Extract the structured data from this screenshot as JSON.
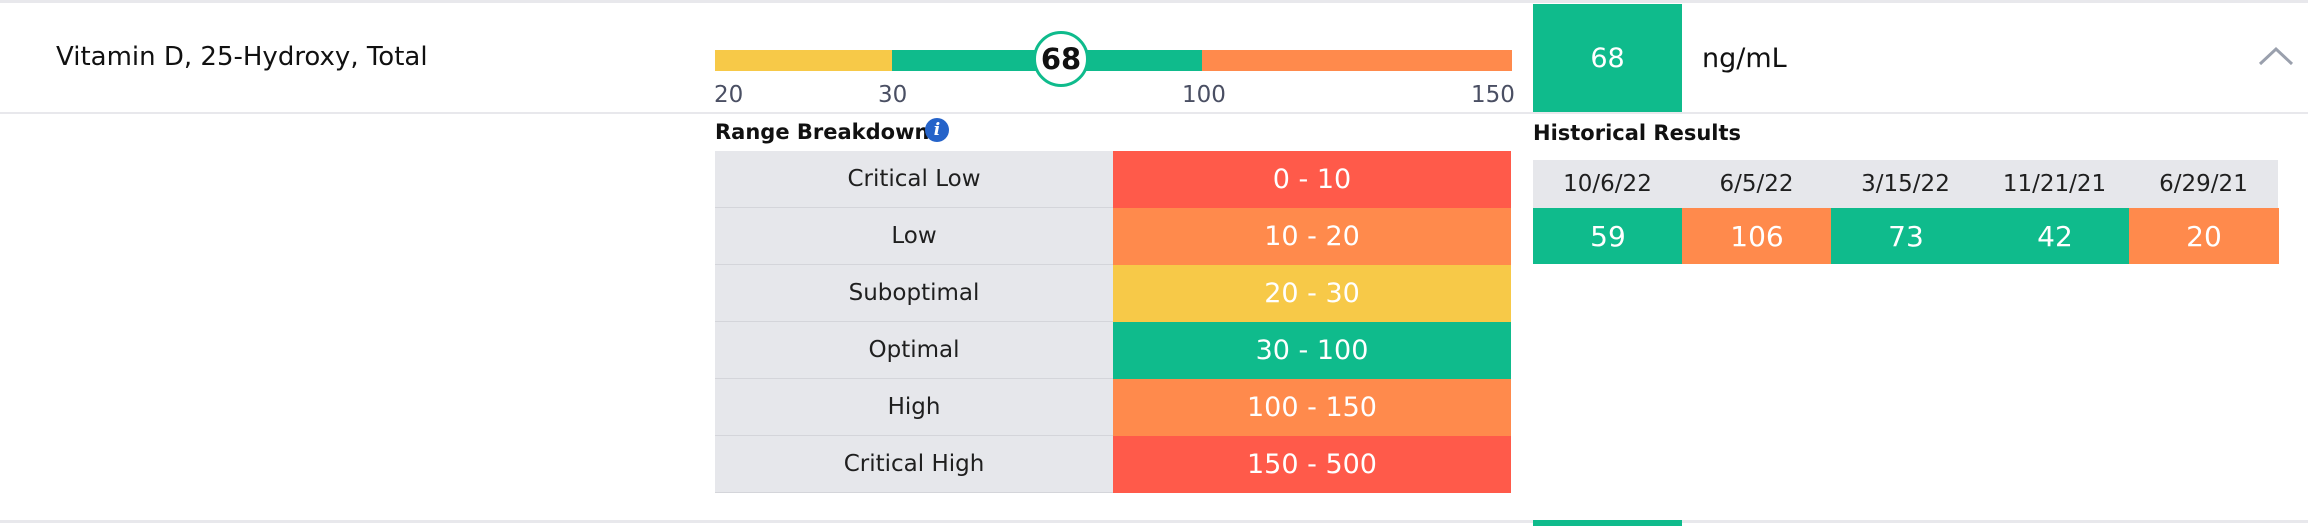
{
  "biomarker": {
    "name": "Vitamin D, 25-Hydroxy, Total",
    "value": "68",
    "unit": "ng/mL"
  },
  "range_bar": {
    "min": 20,
    "max": 150,
    "marker_value": 68,
    "segments": [
      {
        "from": 20,
        "to": 30,
        "color": "#f7c948"
      },
      {
        "from": 30,
        "to": 100,
        "color": "#0fbb8c"
      },
      {
        "from": 100,
        "to": 150,
        "color": "#ff8a4c"
      }
    ],
    "ticks": [
      "20",
      "30",
      "100",
      "150"
    ]
  },
  "range_breakdown": {
    "title": "Range Breakdown",
    "info_icon": "info-icon",
    "rows": [
      {
        "label": "Critical Low",
        "range": "0 - 10",
        "color": "#ff5a4a"
      },
      {
        "label": "Low",
        "range": "10 - 20",
        "color": "#ff8a4c"
      },
      {
        "label": "Suboptimal",
        "range": "20 - 30",
        "color": "#f7c948"
      },
      {
        "label": "Optimal",
        "range": "30 - 100",
        "color": "#0fbb8c"
      },
      {
        "label": "High",
        "range": "100 - 150",
        "color": "#ff8a4c"
      },
      {
        "label": "Critical High",
        "range": "150 - 500",
        "color": "#ff5a4a"
      }
    ]
  },
  "historical": {
    "title": "Historical Results",
    "results": [
      {
        "date": "10/6/22",
        "value": "59",
        "color": "#0fbb8c"
      },
      {
        "date": "6/5/22",
        "value": "106",
        "color": "#ff8a4c"
      },
      {
        "date": "3/15/22",
        "value": "73",
        "color": "#0fbb8c"
      },
      {
        "date": "11/21/21",
        "value": "42",
        "color": "#0fbb8c"
      },
      {
        "date": "6/29/21",
        "value": "20",
        "color": "#ff8a4c"
      }
    ]
  },
  "collapse_icon": "chevron-up-icon",
  "colors": {
    "optimal": "#0fbb8c",
    "low": "#ff8a4c",
    "suboptimal": "#f7c948",
    "critical": "#ff5a4a"
  }
}
